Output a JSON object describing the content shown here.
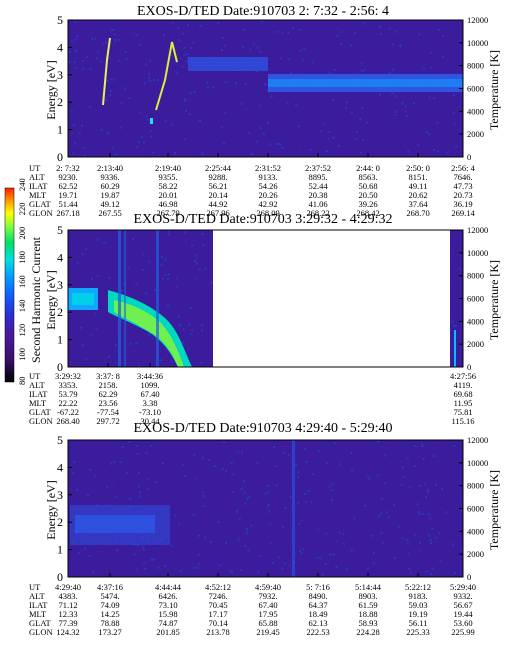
{
  "colors": {
    "background": "#3a1c9c",
    "colorbar": [
      "#000000",
      "#3a1070",
      "#4a1aa0",
      "#2a30d0",
      "#1060ff",
      "#00a0ff",
      "#00e0e0",
      "#00e060",
      "#80ff40",
      "#ffff00",
      "#ffa000",
      "#ff2000"
    ]
  },
  "chart_data": [
    {
      "type": "heatmap",
      "title": "EXOS-D/TED   Date:910703  2: 7:32 - 2:56: 4",
      "ylabel": "Energy [eV]",
      "y2label": "Temperature [K]",
      "ylim": [
        0,
        5
      ],
      "y2lim": [
        0,
        12000
      ],
      "yticks": [
        "0",
        "1",
        "2",
        "3",
        "4",
        "5"
      ],
      "y2ticks": [
        "0",
        "2000",
        "4000",
        "6000",
        "8000",
        "10000",
        "12000"
      ],
      "orbit_labels": [
        "UT",
        "ALT",
        "ILAT",
        "MLT",
        "GLAT",
        "GLON"
      ],
      "orbit_columns": [
        [
          "2: 7:32",
          "9230.",
          "62.52",
          "19.71",
          "51.44",
          "267.18"
        ],
        [
          "2:13:40",
          "9336.",
          "60.29",
          "19.87",
          "49.12",
          "267.55"
        ],
        [
          "2:19:40",
          "9355.",
          "58.22",
          "20.01",
          "46.98",
          "267.79"
        ],
        [
          "2:25:44",
          "9288.",
          "56.21",
          "20.14",
          "44.92",
          "267.96"
        ],
        [
          "2:31:52",
          "9133.",
          "54.26",
          "20.26",
          "42.92",
          "268.09"
        ],
        [
          "2:37:52",
          "8895.",
          "52.44",
          "20.38",
          "41.06",
          "268.22"
        ],
        [
          "2:44: 0",
          "8563.",
          "50.68",
          "20.50",
          "39.26",
          "268.42"
        ],
        [
          "2:50: 0",
          "8151.",
          "49.11",
          "20.62",
          "37.64",
          "268.70"
        ],
        [
          "2:56: 4",
          "7646.",
          "47.73",
          "20.73",
          "36.19",
          "269.14"
        ]
      ],
      "features": [
        {
          "kind": "band",
          "t_start": 0.47,
          "t_end": 0.6,
          "energy": 3.3,
          "level": "green-blue"
        },
        {
          "kind": "band",
          "t_start": 0.6,
          "t_end": 1.0,
          "energy": 2.8,
          "level": "cyan-blue"
        }
      ]
    },
    {
      "type": "heatmap",
      "title": "EXOS-D/TED   Date:910703  3:29:32 - 4:29:32",
      "ylabel": "Energy [eV]",
      "y2label": "Temperature [K]",
      "colorbar_label": "Second Harmonic Current",
      "colorbar_ticks": [
        "80",
        "100",
        "120",
        "140",
        "160",
        "180",
        "200",
        "220",
        "240"
      ],
      "ylim": [
        0,
        5
      ],
      "y2lim": [
        0,
        12000
      ],
      "yticks": [
        "0",
        "1",
        "2",
        "3",
        "4",
        "5"
      ],
      "y2ticks": [
        "0",
        "2000",
        "4000",
        "6000",
        "8000",
        "10000",
        "12000"
      ],
      "orbit_labels": [
        "UT",
        "ALT",
        "ILAT",
        "MLT",
        "GLAT",
        "GLON"
      ],
      "orbit_columns": [
        [
          "3:29:32",
          "3353.",
          "53.79",
          "22.22",
          "-67.22",
          "268.40"
        ],
        [
          "3:37: 8",
          "2158.",
          "62.29",
          "23.56",
          "-77.54",
          "297.72"
        ],
        [
          "3:44:36",
          "1099.",
          "67.40",
          "3.38",
          "-73.10",
          "30.44"
        ],
        [
          "4:27:56",
          "4119.",
          "69.68",
          "11.95",
          "75.81",
          "115.16"
        ]
      ]
    },
    {
      "type": "heatmap",
      "title": "EXOS-D/TED   Date:910703  4:29:40 - 5:29:40",
      "ylabel": "Energy [eV]",
      "y2label": "Temperature [K]",
      "ylim": [
        0,
        5
      ],
      "y2lim": [
        0,
        12000
      ],
      "yticks": [
        "0",
        "1",
        "2",
        "3",
        "4",
        "5"
      ],
      "y2ticks": [
        "0",
        "2000",
        "4000",
        "6000",
        "8000",
        "10000",
        "12000"
      ],
      "orbit_labels": [
        "UT",
        "ALT",
        "ILAT",
        "MLT",
        "GLAT",
        "GLON"
      ],
      "orbit_columns": [
        [
          "4:29:40",
          "4383.",
          "71.12",
          "12.33",
          "77.39",
          "124.32"
        ],
        [
          "4:37:16",
          "5474.",
          "74.09",
          "14.25",
          "78.88",
          "173.27"
        ],
        [
          "4:44:44",
          "6426.",
          "73.10",
          "15.98",
          "74.87",
          "201.85"
        ],
        [
          "4:52:12",
          "7246.",
          "70.45",
          "17.17",
          "70.14",
          "213.78"
        ],
        [
          "4:59:40",
          "7932.",
          "67.40",
          "17.95",
          "65.88",
          "219.45"
        ],
        [
          "5: 7:16",
          "8490.",
          "64.37",
          "18.49",
          "62.13",
          "222.53"
        ],
        [
          "5:14:44",
          "8903.",
          "61.59",
          "18.88",
          "58.93",
          "224.28"
        ],
        [
          "5:22:12",
          "9183.",
          "59.03",
          "19.19",
          "56.11",
          "225.33"
        ],
        [
          "5:29:40",
          "9332.",
          "56.67",
          "19.44",
          "53.60",
          "225.99"
        ]
      ]
    }
  ]
}
